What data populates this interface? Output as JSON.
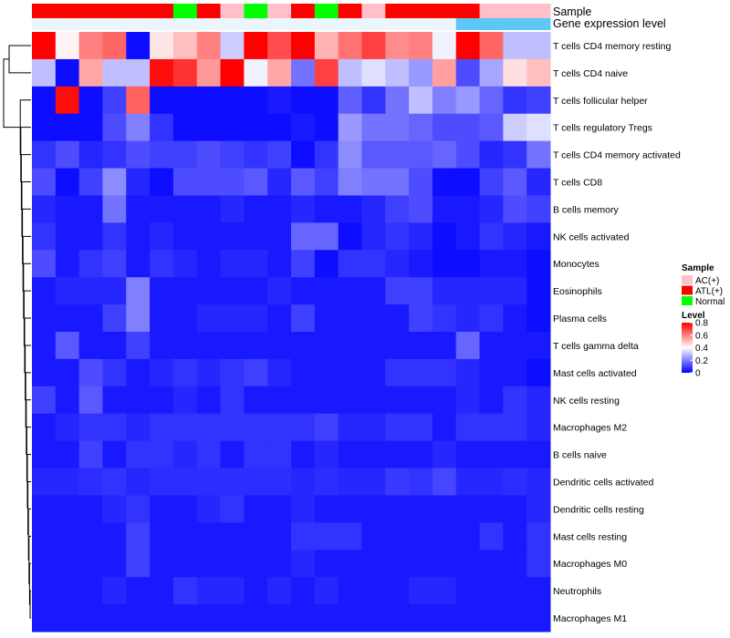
{
  "chart_data": {
    "type": "heatmap",
    "title": "",
    "annotation_tracks": [
      {
        "name": "Sample",
        "values": [
          "ATL(+)",
          "ATL(+)",
          "ATL(+)",
          "ATL(+)",
          "ATL(+)",
          "ATL(+)",
          "Normal",
          "ATL(+)",
          "AC(+)",
          "Normal",
          "AC(+)",
          "ATL(+)",
          "Normal",
          "ATL(+)",
          "AC(+)",
          "ATL(+)",
          "ATL(+)",
          "ATL(+)",
          "ATL(+)",
          "AC(+)",
          "AC(+)",
          "AC(+)"
        ]
      },
      {
        "name": "Gene expression level",
        "values": [
          "low",
          "low",
          "low",
          "low",
          "low",
          "low",
          "low",
          "low",
          "low",
          "low",
          "low",
          "low",
          "low",
          "low",
          "low",
          "low",
          "low",
          "low",
          "high",
          "high",
          "high",
          "high"
        ]
      }
    ],
    "annotation_colors": {
      "Sample": {
        "AC(+)": "#FFC0CB",
        "ATL(+)": "#FF0000",
        "Normal": "#00FF00"
      },
      "Gene expression level": {
        "low": "#EAF6FC",
        "high": "#5BC8F5"
      }
    },
    "rows": [
      "T cells CD4 memory resting",
      "T cells CD4 naive",
      "T cells follicular helper",
      "T cells regulatory  Tregs",
      "T cells CD4 memory activated",
      "T cells CD8",
      "B cells memory",
      "NK cells activated",
      "Monocytes",
      "Eosinophils",
      "Plasma cells",
      "T cells gamma delta",
      "Mast cells activated",
      "NK cells resting",
      "Macrophages M2",
      "B cells naive",
      "Dendritic cells activated",
      "Dendritic cells resting",
      "Mast cells resting",
      "Macrophages M0",
      "Neutrophils",
      "Macrophages M1"
    ],
    "values": [
      [
        0.8,
        0.42,
        0.6,
        0.64,
        0.02,
        0.44,
        0.5,
        0.6,
        0.32,
        0.8,
        0.68,
        0.8,
        0.52,
        0.62,
        0.7,
        0.58,
        0.6,
        0.38,
        0.8,
        0.64,
        0.3,
        0.3
      ],
      [
        0.3,
        0.02,
        0.54,
        0.3,
        0.3,
        0.78,
        0.72,
        0.56,
        0.8,
        0.38,
        0.54,
        0.18,
        0.7,
        0.3,
        0.35,
        0.3,
        0.24,
        0.55,
        0.12,
        0.26,
        0.45,
        0.5
      ],
      [
        0.02,
        0.78,
        0.02,
        0.1,
        0.65,
        0.02,
        0.02,
        0.02,
        0.02,
        0.02,
        0.04,
        0.02,
        0.02,
        0.15,
        0.08,
        0.18,
        0.3,
        0.2,
        0.24,
        0.16,
        0.08,
        0.1
      ],
      [
        0.02,
        0.02,
        0.02,
        0.12,
        0.2,
        0.08,
        0.02,
        0.02,
        0.02,
        0.02,
        0.02,
        0.04,
        0.02,
        0.24,
        0.18,
        0.18,
        0.16,
        0.12,
        0.12,
        0.14,
        0.32,
        0.35
      ],
      [
        0.08,
        0.12,
        0.06,
        0.08,
        0.12,
        0.1,
        0.1,
        0.12,
        0.1,
        0.08,
        0.1,
        0.02,
        0.08,
        0.22,
        0.14,
        0.14,
        0.14,
        0.16,
        0.12,
        0.06,
        0.08,
        0.18
      ],
      [
        0.12,
        0.02,
        0.1,
        0.22,
        0.06,
        0.02,
        0.12,
        0.12,
        0.12,
        0.14,
        0.06,
        0.14,
        0.1,
        0.2,
        0.18,
        0.18,
        0.12,
        0.02,
        0.02,
        0.1,
        0.14,
        0.06
      ],
      [
        0.06,
        0.04,
        0.04,
        0.18,
        0.04,
        0.04,
        0.04,
        0.04,
        0.06,
        0.04,
        0.04,
        0.06,
        0.04,
        0.04,
        0.06,
        0.1,
        0.12,
        0.04,
        0.04,
        0.06,
        0.12,
        0.1
      ],
      [
        0.08,
        0.04,
        0.04,
        0.08,
        0.04,
        0.06,
        0.04,
        0.04,
        0.04,
        0.04,
        0.04,
        0.16,
        0.16,
        0.02,
        0.06,
        0.08,
        0.06,
        0.02,
        0.04,
        0.08,
        0.06,
        0.04
      ],
      [
        0.12,
        0.04,
        0.08,
        0.1,
        0.04,
        0.08,
        0.06,
        0.04,
        0.06,
        0.06,
        0.04,
        0.1,
        0.02,
        0.08,
        0.08,
        0.06,
        0.04,
        0.02,
        0.02,
        0.04,
        0.04,
        0.02
      ],
      [
        0.04,
        0.06,
        0.06,
        0.06,
        0.2,
        0.04,
        0.04,
        0.04,
        0.04,
        0.04,
        0.06,
        0.04,
        0.04,
        0.04,
        0.04,
        0.1,
        0.1,
        0.06,
        0.06,
        0.06,
        0.06,
        0.02
      ],
      [
        0.04,
        0.04,
        0.04,
        0.1,
        0.2,
        0.04,
        0.04,
        0.06,
        0.06,
        0.06,
        0.04,
        0.1,
        0.04,
        0.04,
        0.04,
        0.04,
        0.1,
        0.08,
        0.06,
        0.08,
        0.04,
        0.02
      ],
      [
        0.04,
        0.14,
        0.04,
        0.04,
        0.1,
        0.04,
        0.04,
        0.04,
        0.04,
        0.04,
        0.04,
        0.04,
        0.04,
        0.04,
        0.04,
        0.04,
        0.04,
        0.04,
        0.16,
        0.04,
        0.04,
        0.04
      ],
      [
        0.04,
        0.04,
        0.12,
        0.08,
        0.04,
        0.06,
        0.08,
        0.06,
        0.08,
        0.1,
        0.06,
        0.04,
        0.04,
        0.04,
        0.04,
        0.08,
        0.08,
        0.08,
        0.06,
        0.04,
        0.04,
        0.02
      ],
      [
        0.1,
        0.04,
        0.14,
        0.04,
        0.04,
        0.04,
        0.06,
        0.04,
        0.08,
        0.04,
        0.04,
        0.04,
        0.04,
        0.04,
        0.04,
        0.04,
        0.04,
        0.04,
        0.06,
        0.04,
        0.08,
        0.06
      ],
      [
        0.04,
        0.06,
        0.08,
        0.08,
        0.06,
        0.08,
        0.08,
        0.08,
        0.08,
        0.08,
        0.08,
        0.08,
        0.1,
        0.06,
        0.06,
        0.08,
        0.08,
        0.04,
        0.08,
        0.08,
        0.08,
        0.06
      ],
      [
        0.04,
        0.04,
        0.1,
        0.04,
        0.08,
        0.08,
        0.06,
        0.08,
        0.04,
        0.08,
        0.08,
        0.04,
        0.06,
        0.04,
        0.04,
        0.04,
        0.04,
        0.06,
        0.04,
        0.04,
        0.04,
        0.04
      ],
      [
        0.06,
        0.06,
        0.07,
        0.08,
        0.06,
        0.07,
        0.07,
        0.07,
        0.07,
        0.07,
        0.07,
        0.06,
        0.07,
        0.06,
        0.06,
        0.09,
        0.08,
        0.11,
        0.06,
        0.06,
        0.07,
        0.06
      ],
      [
        0.04,
        0.04,
        0.04,
        0.06,
        0.08,
        0.04,
        0.04,
        0.06,
        0.08,
        0.04,
        0.04,
        0.06,
        0.04,
        0.04,
        0.04,
        0.04,
        0.04,
        0.04,
        0.04,
        0.04,
        0.04,
        0.06
      ],
      [
        0.04,
        0.04,
        0.04,
        0.04,
        0.1,
        0.04,
        0.04,
        0.04,
        0.04,
        0.04,
        0.04,
        0.08,
        0.08,
        0.08,
        0.04,
        0.04,
        0.04,
        0.04,
        0.04,
        0.08,
        0.04,
        0.08
      ],
      [
        0.04,
        0.04,
        0.04,
        0.04,
        0.1,
        0.04,
        0.04,
        0.04,
        0.04,
        0.04,
        0.04,
        0.06,
        0.04,
        0.04,
        0.04,
        0.04,
        0.04,
        0.04,
        0.04,
        0.04,
        0.04,
        0.08
      ],
      [
        0.04,
        0.04,
        0.04,
        0.06,
        0.04,
        0.04,
        0.08,
        0.06,
        0.06,
        0.04,
        0.06,
        0.04,
        0.06,
        0.04,
        0.04,
        0.04,
        0.06,
        0.06,
        0.04,
        0.04,
        0.04,
        0.04
      ],
      [
        0.04,
        0.04,
        0.04,
        0.04,
        0.04,
        0.04,
        0.04,
        0.04,
        0.04,
        0.04,
        0.04,
        0.04,
        0.04,
        0.04,
        0.04,
        0.04,
        0.04,
        0.04,
        0.04,
        0.04,
        0.04,
        0.04
      ]
    ],
    "color_scale": {
      "min": 0,
      "max": 0.8,
      "low": "#0000FF",
      "mid": "#FFFFFF",
      "high": "#FF0000",
      "midpoint": 0.4
    },
    "legend": {
      "sample_title": "Sample",
      "sample_entries": [
        {
          "label": "AC(+)",
          "color": "#FFC0CB"
        },
        {
          "label": "ATL(+)",
          "color": "#FF0000"
        },
        {
          "label": "Normal",
          "color": "#00FF00"
        }
      ],
      "level_title": "Level",
      "level_ticks": [
        {
          "label": "0.8",
          "value": 0.8
        },
        {
          "label": "0.6",
          "value": 0.6
        },
        {
          "label": "0.4",
          "value": 0.4
        },
        {
          "label": "0.2",
          "value": 0.2
        },
        {
          "label": "0",
          "value": 0.0
        }
      ],
      "placement": "right"
    }
  }
}
